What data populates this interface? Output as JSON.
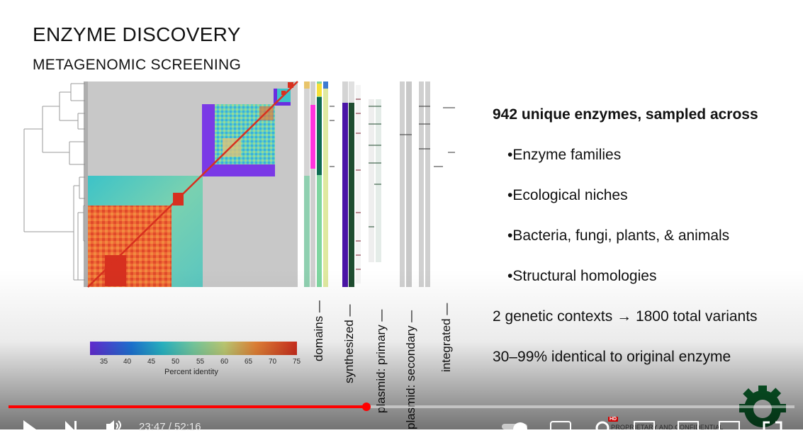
{
  "slide": {
    "title": "ENZYME DISCOVERY",
    "subtitle": "METAGENOMIC SCREENING",
    "headline": "942 unique enzymes, sampled across",
    "bullets": [
      "•Enzyme families",
      "•Ecological niches",
      "•Bacteria, fungi, plants, & animals",
      "•Structural homologies"
    ],
    "statements": [
      "2 genetic contexts → 1800 total variants",
      "30–99% identical to original enzyme"
    ],
    "track_labels": [
      "domains —",
      "synthesized —",
      "plasmid: primary —",
      "plasmid: secondary —",
      "integrated —"
    ],
    "colorbar": {
      "label": "Percent identity",
      "ticks": [
        "35",
        "40",
        "45",
        "50",
        "55",
        "60",
        "65",
        "70",
        "75"
      ]
    },
    "watermark": "PROPRIETARY AND CONFIDENTIAL"
  },
  "player": {
    "time_display": "23:47 / 52:16",
    "progress_fraction": 0.455,
    "hd_badge": "HD",
    "icons": [
      "play-icon",
      "next-icon",
      "volume-icon",
      "autoplay-toggle",
      "captions-icon",
      "settings-icon",
      "miniplayer-icon",
      "theater-icon",
      "cast-icon",
      "fullscreen-icon"
    ]
  },
  "colors": {
    "progress": "#ff0000",
    "heatmap_low": "#6a2ee0",
    "heatmap_high": "#d7301f",
    "background": "#ffffff",
    "logo": "#0b6b2f"
  }
}
